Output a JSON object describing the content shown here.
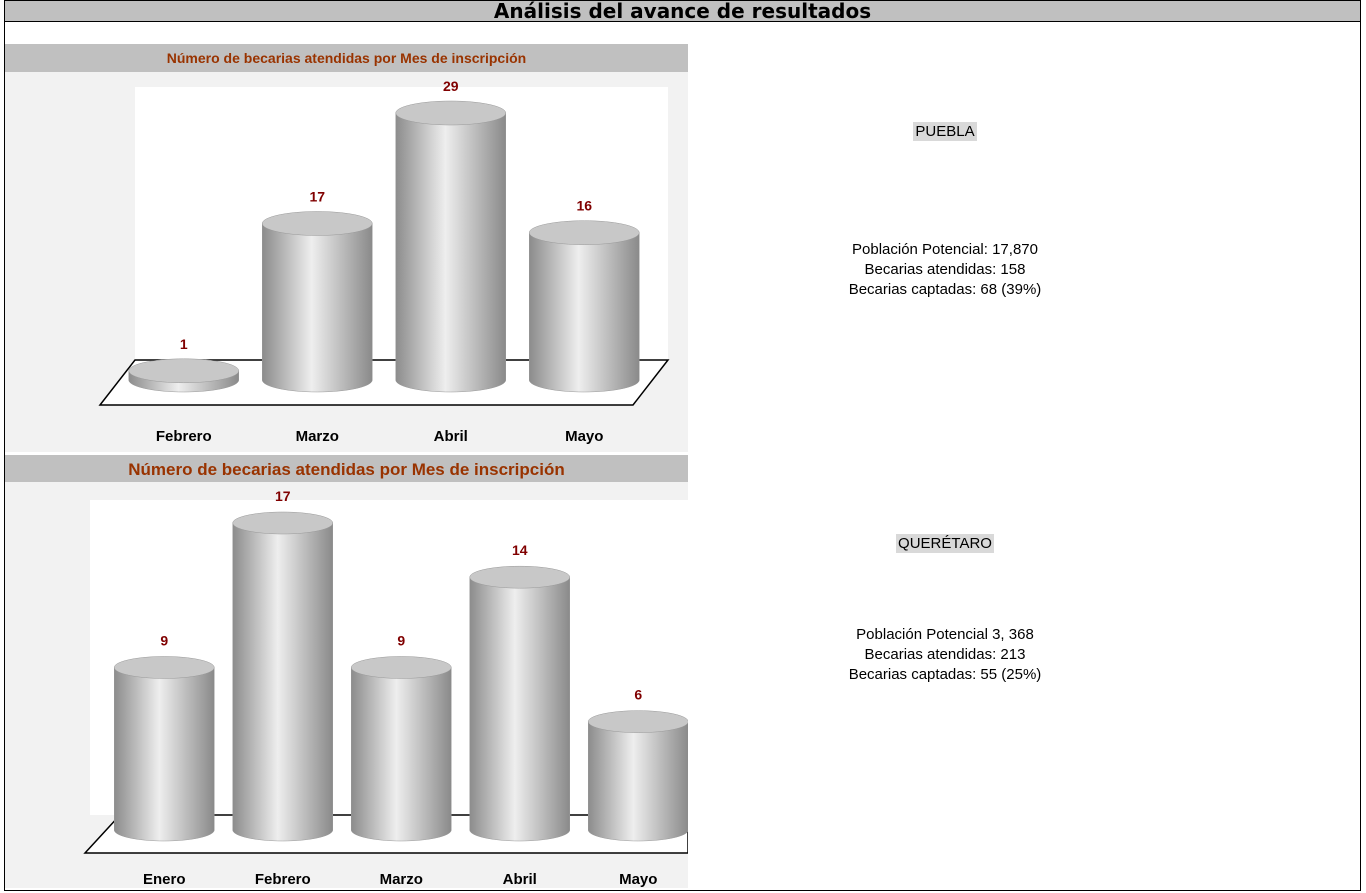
{
  "header": {
    "title": "Análisis del avance de resultados"
  },
  "chart_data": [
    {
      "type": "bar",
      "title": "Número de becarias atendidas por Mes de inscripción",
      "categories": [
        "Febrero",
        "Marzo",
        "Abril",
        "Mayo"
      ],
      "values": [
        1,
        17,
        29,
        16
      ],
      "color": "#b4b4b4"
    },
    {
      "type": "bar",
      "title": "Número de becarias atendidas por Mes de inscripción",
      "categories": [
        "Enero",
        "Febrero",
        "Marzo",
        "Abril",
        "Mayo"
      ],
      "values": [
        9,
        17,
        9,
        14,
        6
      ],
      "color": "#b4b4b4"
    }
  ],
  "panels": [
    {
      "state": "PUEBLA",
      "lines": [
        "Población Potencial: 17,870",
        "Becarias atendidas: 158",
        "Becarias captadas: 68 (39%)"
      ]
    },
    {
      "state": "QUERÉTARO",
      "lines": [
        "Población Potencial 3, 368",
        "Becarias atendidas: 213",
        "Becarias captadas: 55 (25%)"
      ]
    }
  ]
}
